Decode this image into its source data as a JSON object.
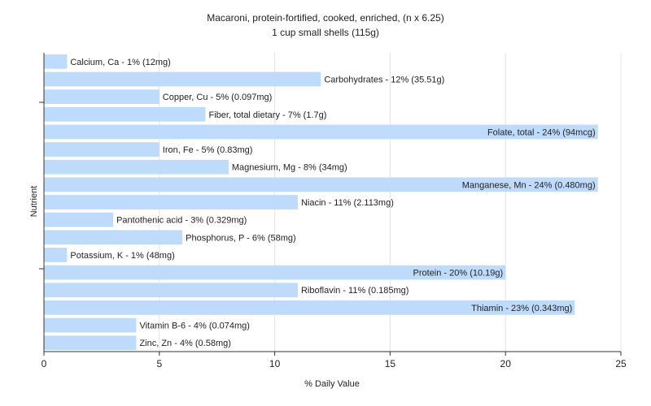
{
  "chart_data": {
    "type": "bar",
    "orientation": "horizontal",
    "title": "Macaroni, protein-fortified, cooked, enriched, (n x 6.25)",
    "subtitle": "1 cup small shells (115g)",
    "xlabel": "% Daily Value",
    "ylabel": "Nutrient",
    "xlim": [
      0,
      25
    ],
    "xticks": [
      0,
      5,
      10,
      15,
      20,
      25
    ],
    "grid": true,
    "bar_color": "#bfdbfb",
    "categories": [
      "Calcium, Ca",
      "Carbohydrates",
      "Copper, Cu",
      "Fiber, total dietary",
      "Folate, total",
      "Iron, Fe",
      "Magnesium, Mg",
      "Manganese, Mn",
      "Niacin",
      "Pantothenic acid",
      "Phosphorus, P",
      "Potassium, K",
      "Protein",
      "Riboflavin",
      "Thiamin",
      "Vitamin B-6",
      "Zinc, Zn"
    ],
    "values": [
      1,
      12,
      5,
      7,
      24,
      5,
      8,
      24,
      11,
      3,
      6,
      1,
      20,
      11,
      23,
      4,
      4
    ],
    "labels": [
      "Calcium, Ca - 1% (12mg)",
      "Carbohydrates - 12% (35.51g)",
      "Copper, Cu - 5% (0.097mg)",
      "Fiber, total dietary - 7% (1.7g)",
      "Folate, total - 24% (94mcg)",
      "Iron, Fe - 5% (0.83mg)",
      "Magnesium, Mg - 8% (34mg)",
      "Manganese, Mn - 24% (0.480mg)",
      "Niacin - 11% (2.113mg)",
      "Pantothenic acid - 3% (0.329mg)",
      "Phosphorus, P - 6% (58mg)",
      "Potassium, K - 1% (48mg)",
      "Protein - 20% (10.19g)",
      "Riboflavin - 11% (0.185mg)",
      "Thiamin - 23% (0.343mg)",
      "Vitamin B-6 - 4% (0.074mg)",
      "Zinc, Zn - 4% (0.58mg)"
    ]
  }
}
